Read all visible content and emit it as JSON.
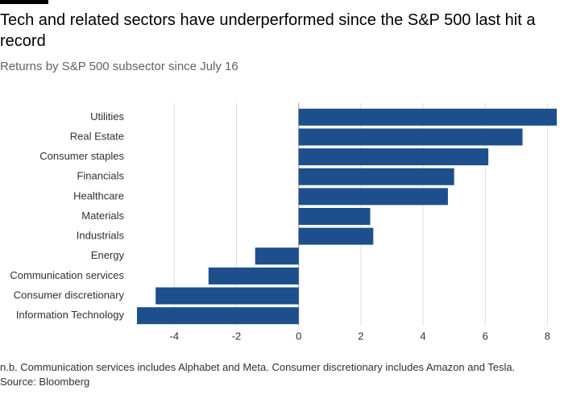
{
  "chart_data": {
    "type": "hbar",
    "title": "Tech and related sectors have underperformed since the S&P 500 last hit a record",
    "subtitle": "Returns by S&P 500 subsector since July 16",
    "categories": [
      "Utilities",
      "Real Estate",
      "Consumer staples",
      "Financials",
      "Healthcare",
      "Materials",
      "Industrials",
      "Energy",
      "Communication services",
      "Consumer discretionary",
      "Information Technology"
    ],
    "values": [
      8.3,
      7.2,
      6.1,
      5.0,
      4.8,
      2.3,
      2.4,
      -1.4,
      -2.9,
      -4.6,
      -5.2
    ],
    "color": "#1d4f8c",
    "xlim": [
      -5.2,
      8.3
    ],
    "xticks": [
      -4,
      -2,
      0,
      2,
      4,
      6,
      8
    ],
    "grid": true,
    "note": "n.b. Communication services includes Alphabet and Meta. Consumer discretionary includes Amazon and Tesla.",
    "source": "Source: Bloomberg"
  }
}
